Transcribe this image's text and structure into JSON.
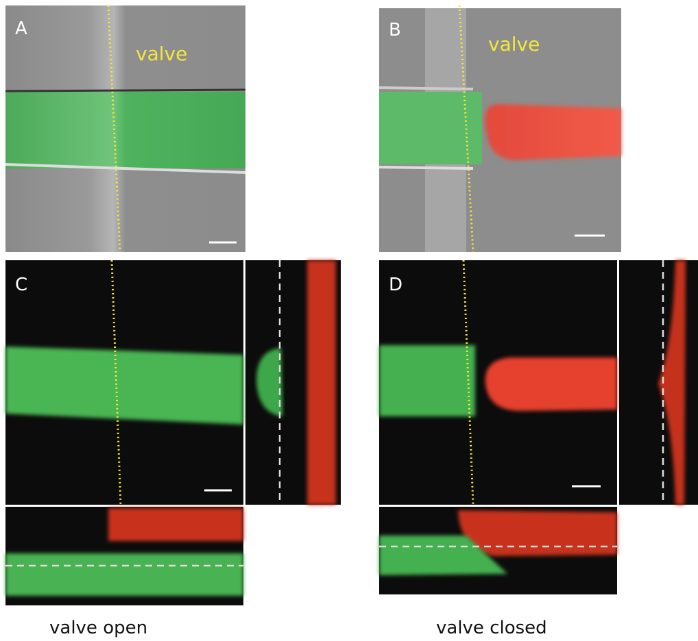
{
  "panels": [
    {
      "label": "A",
      "annotation": "valve"
    },
    {
      "label": "B",
      "annotation": "valve"
    },
    {
      "label": "C"
    },
    {
      "label": "D"
    }
  ],
  "captions": [
    "valve open",
    "valve closed"
  ]
}
